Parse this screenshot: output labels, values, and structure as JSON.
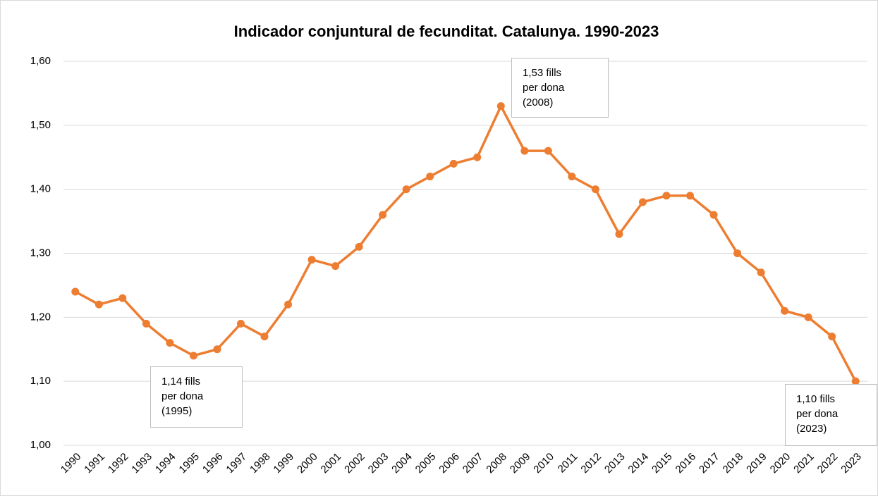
{
  "chart_data": {
    "type": "line",
    "title": "Indicador conjuntural de fecunditat. Catalunya. 1990-2023",
    "categories": [
      "1990",
      "1991",
      "1992",
      "1993",
      "1994",
      "1995",
      "1996",
      "1997",
      "1998",
      "1999",
      "2000",
      "2001",
      "2002",
      "2003",
      "2004",
      "2005",
      "2006",
      "2007",
      "2008",
      "2009",
      "2010",
      "2011",
      "2012",
      "2013",
      "2014",
      "2015",
      "2016",
      "2017",
      "2018",
      "2019",
      "2020",
      "2021",
      "2022",
      "2023"
    ],
    "values": [
      1.24,
      1.22,
      1.23,
      1.19,
      1.16,
      1.14,
      1.15,
      1.19,
      1.17,
      1.22,
      1.29,
      1.28,
      1.31,
      1.36,
      1.4,
      1.42,
      1.44,
      1.45,
      1.53,
      1.46,
      1.46,
      1.42,
      1.4,
      1.33,
      1.38,
      1.39,
      1.39,
      1.36,
      1.3,
      1.27,
      1.21,
      1.2,
      1.17,
      1.1
    ],
    "color": "#ed7d31",
    "ylim": [
      1.0,
      1.6
    ],
    "yticks": [
      {
        "value": 1.0,
        "label": "1,00"
      },
      {
        "value": 1.1,
        "label": "1,10"
      },
      {
        "value": 1.2,
        "label": "1,20"
      },
      {
        "value": 1.3,
        "label": "1,30"
      },
      {
        "value": 1.4,
        "label": "1,40"
      },
      {
        "value": 1.5,
        "label": "1,50"
      },
      {
        "value": 1.6,
        "label": "1,60"
      }
    ],
    "grid": true,
    "annotations": [
      {
        "lines": [
          "1,14 fills",
          "per dona",
          "(1995)"
        ]
      },
      {
        "lines": [
          "1,53 fills",
          "per dona",
          "(2008)"
        ]
      },
      {
        "lines": [
          "1,10 fills",
          "per dona",
          "(2023)"
        ]
      }
    ]
  }
}
